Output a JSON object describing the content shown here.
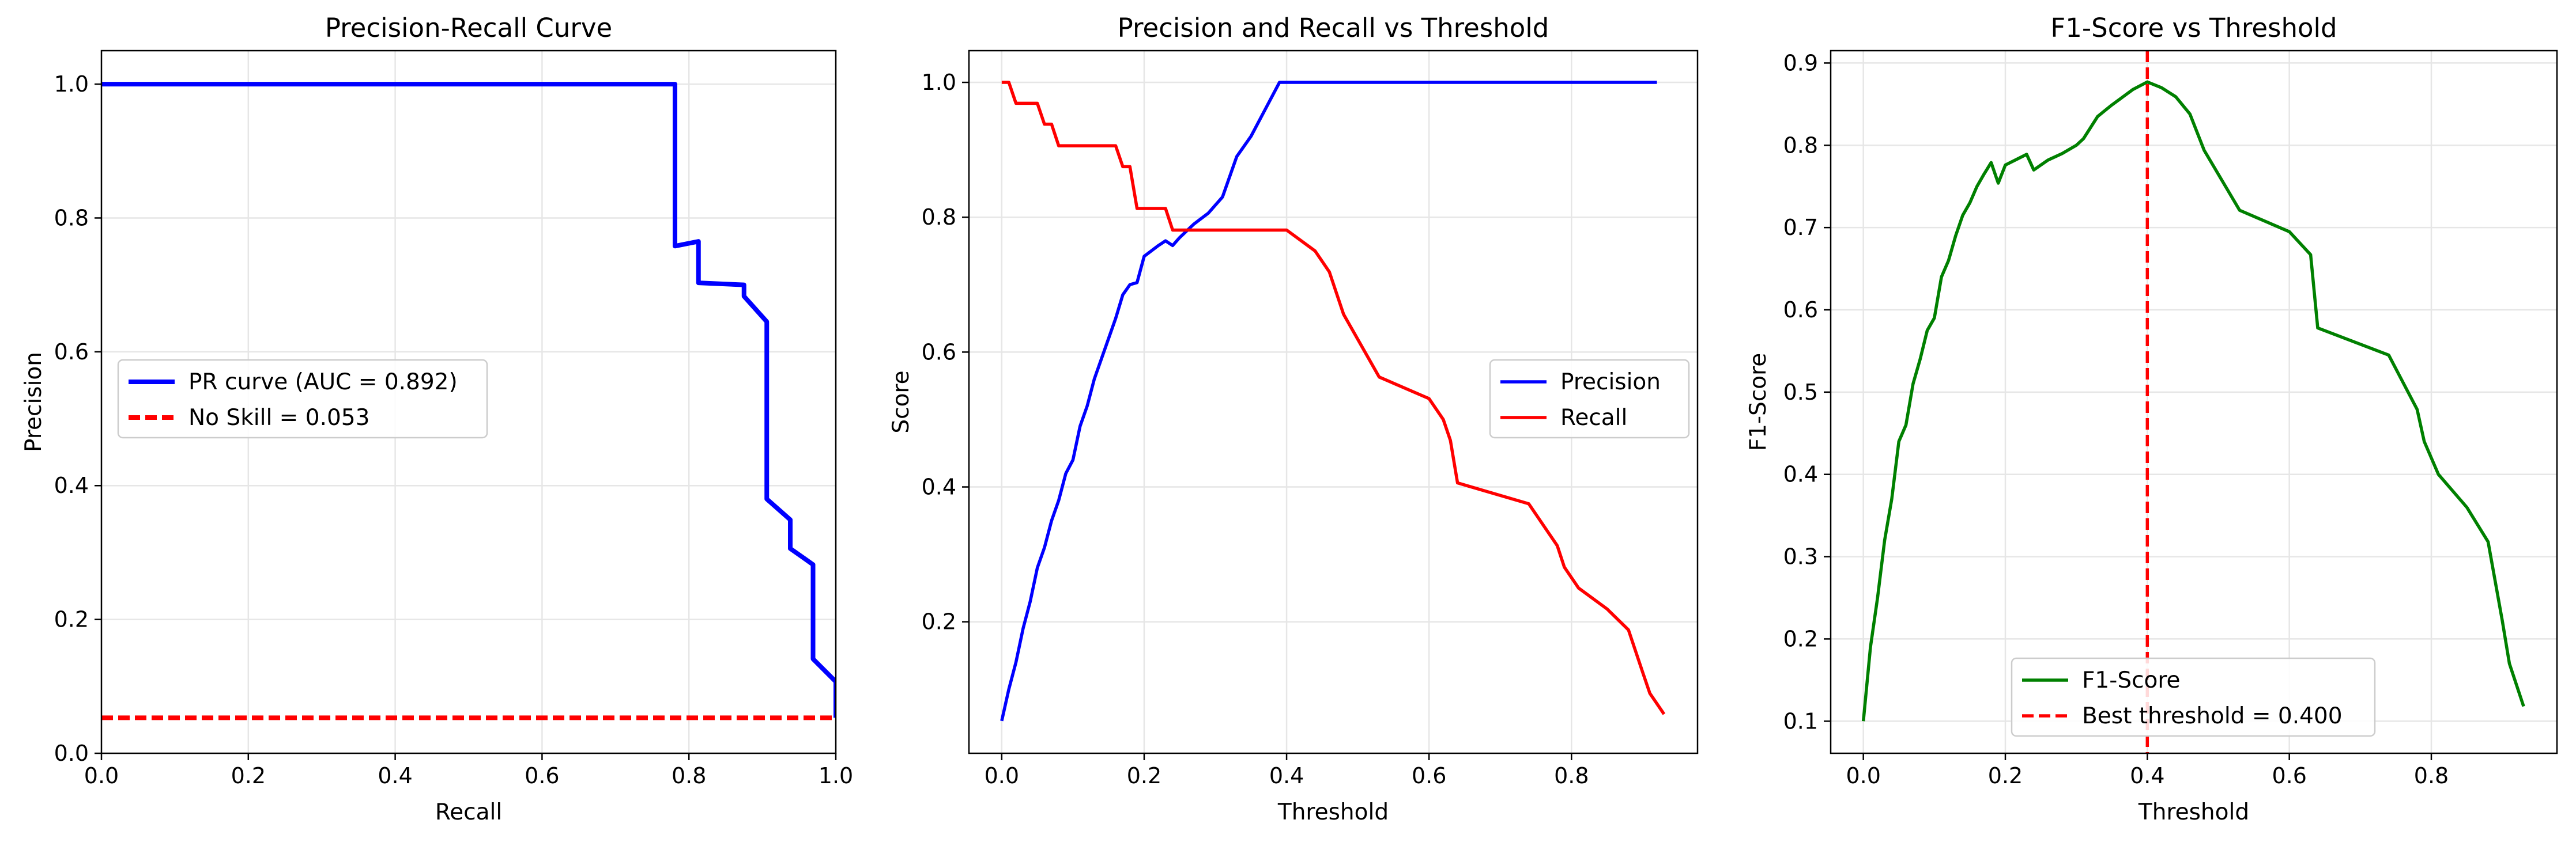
{
  "chart_data": [
    {
      "type": "line",
      "title": "Precision-Recall Curve",
      "xlabel": "Recall",
      "ylabel": "Precision",
      "xlim": [
        0,
        1.0
      ],
      "ylim": [
        0,
        1.05
      ],
      "xticks": [
        0.0,
        0.2,
        0.4,
        0.6,
        0.8,
        1.0
      ],
      "yticks": [
        0.0,
        0.2,
        0.4,
        0.6,
        0.8,
        1.0
      ],
      "xtick_labels": [
        "0.0",
        "0.2",
        "0.4",
        "0.6",
        "0.8",
        "1.0"
      ],
      "ytick_labels": [
        "0.0",
        "0.2",
        "0.4",
        "0.6",
        "0.8",
        "1.0"
      ],
      "grid": true,
      "legend_position": "center-left",
      "series": [
        {
          "name": "PR curve (AUC = 0.892)",
          "color": "#0000ff",
          "style": "solid",
          "x": [
            0,
            0.781,
            0.781,
            0.813,
            0.813,
            0.875,
            0.875,
            0.906,
            0.906,
            0.938,
            0.938,
            0.969,
            0.969,
            1.0,
            1.0
          ],
          "y": [
            1.0,
            1.0,
            0.758,
            0.765,
            0.703,
            0.7,
            0.683,
            0.645,
            0.38,
            0.349,
            0.306,
            0.282,
            0.141,
            0.107,
            0.053
          ]
        },
        {
          "name": "No Skill = 0.053",
          "color": "#ff0000",
          "style": "dashed",
          "x": [
            0,
            1
          ],
          "y": [
            0.053,
            0.053
          ]
        }
      ]
    },
    {
      "type": "line",
      "title": "Precision and Recall vs Threshold",
      "xlabel": "Threshold",
      "ylabel": "Score",
      "xlim": [
        -0.046,
        0.977
      ],
      "ylim": [
        0.005,
        1.047
      ],
      "xticks": [
        0.0,
        0.2,
        0.4,
        0.6,
        0.8
      ],
      "yticks": [
        0.2,
        0.4,
        0.6,
        0.8,
        1.0
      ],
      "xtick_labels": [
        "0.0",
        "0.2",
        "0.4",
        "0.6",
        "0.8"
      ],
      "ytick_labels": [
        "0.2",
        "0.4",
        "0.6",
        "0.8",
        "1.0"
      ],
      "grid": true,
      "legend_position": "center-right",
      "series": [
        {
          "name": "Precision",
          "color": "#0000ff",
          "style": "solid",
          "x": [
            0,
            0.01,
            0.02,
            0.03,
            0.04,
            0.05,
            0.06,
            0.07,
            0.08,
            0.09,
            0.1,
            0.11,
            0.12,
            0.13,
            0.14,
            0.15,
            0.16,
            0.17,
            0.18,
            0.19,
            0.2,
            0.22,
            0.23,
            0.24,
            0.25,
            0.27,
            0.29,
            0.31,
            0.33,
            0.35,
            0.37,
            0.39,
            0.4,
            0.5,
            0.6,
            0.7,
            0.8,
            0.9,
            0.92
          ],
          "y": [
            0.053,
            0.1,
            0.14,
            0.19,
            0.23,
            0.28,
            0.31,
            0.35,
            0.38,
            0.42,
            0.44,
            0.49,
            0.52,
            0.56,
            0.59,
            0.62,
            0.65,
            0.685,
            0.7,
            0.703,
            0.742,
            0.758,
            0.765,
            0.758,
            0.77,
            0.79,
            0.806,
            0.83,
            0.89,
            0.92,
            0.96,
            1.0,
            1.0,
            1.0,
            1.0,
            1.0,
            1.0,
            1.0,
            1.0
          ]
        },
        {
          "name": "Recall",
          "color": "#ff0000",
          "style": "solid",
          "x": [
            0,
            0.01,
            0.02,
            0.03,
            0.04,
            0.05,
            0.06,
            0.07,
            0.08,
            0.16,
            0.17,
            0.18,
            0.19,
            0.2,
            0.22,
            0.23,
            0.24,
            0.25,
            0.3,
            0.35,
            0.4,
            0.44,
            0.46,
            0.48,
            0.53,
            0.6,
            0.62,
            0.63,
            0.64,
            0.74,
            0.78,
            0.79,
            0.81,
            0.85,
            0.88,
            0.9,
            0.91,
            0.93
          ],
          "y": [
            1.0,
            1.0,
            0.969,
            0.969,
            0.969,
            0.969,
            0.938,
            0.938,
            0.906,
            0.906,
            0.875,
            0.875,
            0.813,
            0.813,
            0.813,
            0.813,
            0.781,
            0.781,
            0.781,
            0.781,
            0.781,
            0.75,
            0.719,
            0.656,
            0.563,
            0.531,
            0.5,
            0.469,
            0.406,
            0.375,
            0.313,
            0.281,
            0.25,
            0.219,
            0.188,
            0.125,
            0.094,
            0.063
          ]
        }
      ]
    },
    {
      "type": "line",
      "title": "F1-Score vs Threshold",
      "xlabel": "Threshold",
      "ylabel": "F1-Score",
      "xlim": [
        -0.046,
        0.977
      ],
      "ylim": [
        0.061,
        0.915
      ],
      "xticks": [
        0.0,
        0.2,
        0.4,
        0.6,
        0.8
      ],
      "yticks": [
        0.1,
        0.2,
        0.3,
        0.4,
        0.5,
        0.6,
        0.7,
        0.8,
        0.9
      ],
      "xtick_labels": [
        "0.0",
        "0.2",
        "0.4",
        "0.6",
        "0.8"
      ],
      "ytick_labels": [
        "0.1",
        "0.2",
        "0.3",
        "0.4",
        "0.5",
        "0.6",
        "0.7",
        "0.8",
        "0.9"
      ],
      "grid": true,
      "legend_position": "lower-center",
      "series": [
        {
          "name": "F1-Score",
          "color": "#008000",
          "style": "solid",
          "x": [
            0,
            0.01,
            0.02,
            0.03,
            0.04,
            0.05,
            0.06,
            0.07,
            0.08,
            0.09,
            0.1,
            0.11,
            0.12,
            0.13,
            0.14,
            0.15,
            0.16,
            0.17,
            0.18,
            0.19,
            0.2,
            0.23,
            0.24,
            0.26,
            0.28,
            0.3,
            0.31,
            0.33,
            0.35,
            0.38,
            0.4,
            0.42,
            0.44,
            0.46,
            0.48,
            0.53,
            0.6,
            0.63,
            0.64,
            0.74,
            0.78,
            0.79,
            0.81,
            0.85,
            0.88,
            0.9,
            0.91,
            0.93
          ],
          "y": [
            0.1,
            0.19,
            0.25,
            0.32,
            0.37,
            0.44,
            0.46,
            0.51,
            0.54,
            0.575,
            0.59,
            0.64,
            0.66,
            0.69,
            0.715,
            0.73,
            0.75,
            0.765,
            0.779,
            0.754,
            0.776,
            0.789,
            0.77,
            0.782,
            0.79,
            0.8,
            0.808,
            0.835,
            0.849,
            0.868,
            0.877,
            0.87,
            0.859,
            0.838,
            0.794,
            0.721,
            0.695,
            0.667,
            0.578,
            0.545,
            0.479,
            0.44,
            0.4,
            0.36,
            0.318,
            0.222,
            0.17,
            0.118
          ]
        },
        {
          "name": "Best threshold = 0.400",
          "color": "#ff0000",
          "style": "dashed",
          "orientation": "vertical",
          "x_value": 0.4
        }
      ]
    }
  ]
}
